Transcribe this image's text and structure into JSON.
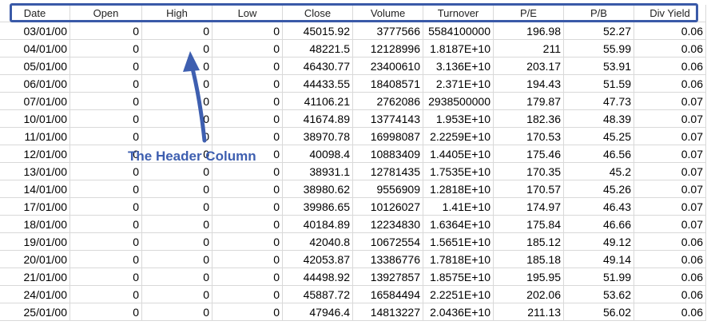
{
  "header": {
    "columns": [
      "Date",
      "Open",
      "High",
      "Low",
      "Close",
      "Volume",
      "Turnover",
      "P/E",
      "P/B",
      "Div Yield"
    ]
  },
  "rows": [
    [
      "03/01/00",
      "0",
      "0",
      "0",
      "45015.92",
      "3777566",
      "5584100000",
      "196.98",
      "52.27",
      "0.06"
    ],
    [
      "04/01/00",
      "0",
      "0",
      "0",
      "48221.5",
      "12128996",
      "1.8187E+10",
      "211",
      "55.99",
      "0.06"
    ],
    [
      "05/01/00",
      "0",
      "0",
      "0",
      "46430.77",
      "23400610",
      "3.136E+10",
      "203.17",
      "53.91",
      "0.06"
    ],
    [
      "06/01/00",
      "0",
      "0",
      "0",
      "44433.55",
      "18408571",
      "2.371E+10",
      "194.43",
      "51.59",
      "0.06"
    ],
    [
      "07/01/00",
      "0",
      "0",
      "0",
      "41106.21",
      "2762086",
      "2938500000",
      "179.87",
      "47.73",
      "0.07"
    ],
    [
      "10/01/00",
      "0",
      "0",
      "0",
      "41674.89",
      "13774143",
      "1.953E+10",
      "182.36",
      "48.39",
      "0.07"
    ],
    [
      "11/01/00",
      "0",
      "0",
      "0",
      "38970.78",
      "16998087",
      "2.2259E+10",
      "170.53",
      "45.25",
      "0.07"
    ],
    [
      "12/01/00",
      "0",
      "0",
      "0",
      "40098.4",
      "10883409",
      "1.4405E+10",
      "175.46",
      "46.56",
      "0.07"
    ],
    [
      "13/01/00",
      "0",
      "0",
      "0",
      "38931.1",
      "12781435",
      "1.7535E+10",
      "170.35",
      "45.2",
      "0.07"
    ],
    [
      "14/01/00",
      "0",
      "0",
      "0",
      "38980.62",
      "9556909",
      "1.2818E+10",
      "170.57",
      "45.26",
      "0.07"
    ],
    [
      "17/01/00",
      "0",
      "0",
      "0",
      "39986.65",
      "10126027",
      "1.41E+10",
      "174.97",
      "46.43",
      "0.07"
    ],
    [
      "18/01/00",
      "0",
      "0",
      "0",
      "40184.89",
      "12234830",
      "1.6364E+10",
      "175.84",
      "46.66",
      "0.07"
    ],
    [
      "19/01/00",
      "0",
      "0",
      "0",
      "42040.8",
      "10672554",
      "1.5651E+10",
      "185.12",
      "49.12",
      "0.06"
    ],
    [
      "20/01/00",
      "0",
      "0",
      "0",
      "42053.87",
      "13386776",
      "1.7818E+10",
      "185.18",
      "49.14",
      "0.06"
    ],
    [
      "21/01/00",
      "0",
      "0",
      "0",
      "44498.92",
      "13927857",
      "1.8575E+10",
      "195.95",
      "51.99",
      "0.06"
    ],
    [
      "24/01/00",
      "0",
      "0",
      "0",
      "45887.72",
      "16584494",
      "2.2251E+10",
      "202.06",
      "53.62",
      "0.06"
    ],
    [
      "25/01/00",
      "0",
      "0",
      "0",
      "47946.4",
      "14813227",
      "2.0436E+10",
      "211.13",
      "56.02",
      "0.06"
    ]
  ],
  "annotation": {
    "label": "The Header Column",
    "color": "#3e5fb0",
    "box_color": "#3a5aa8"
  }
}
